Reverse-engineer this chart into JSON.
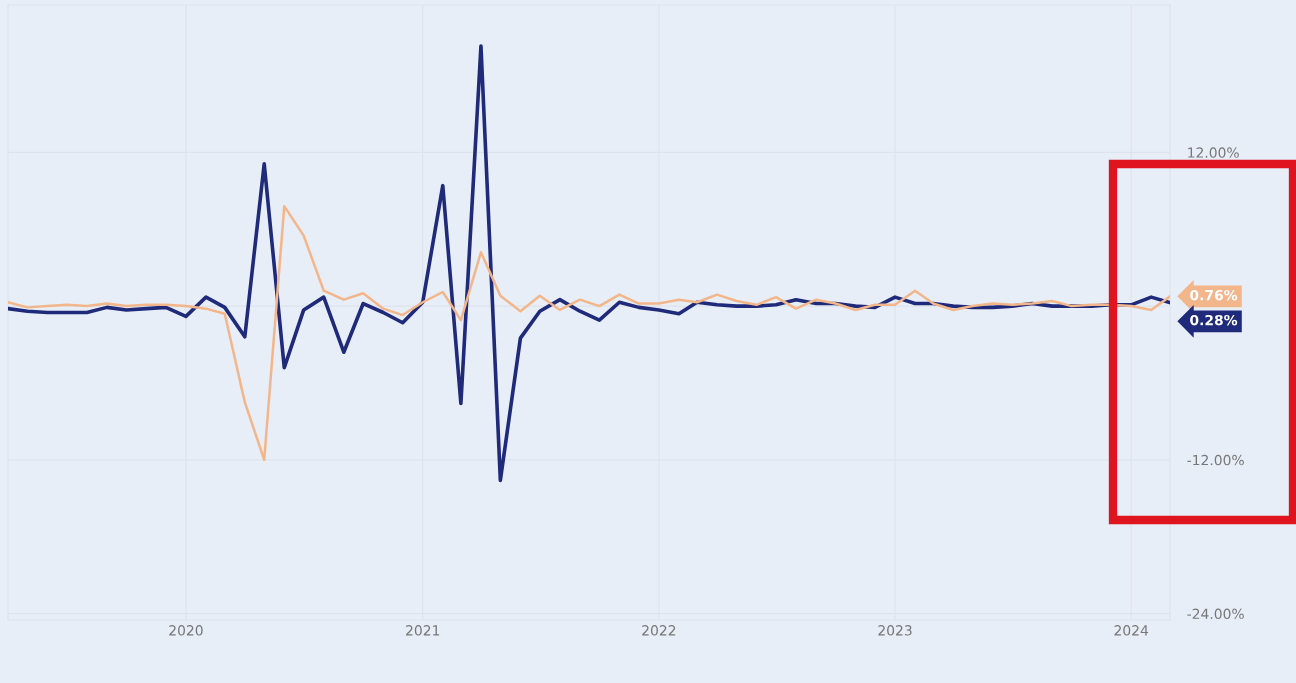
{
  "chart_data": {
    "type": "line",
    "x": [
      "2019-04",
      "2019-05",
      "2019-06",
      "2019-07",
      "2019-08",
      "2019-09",
      "2019-10",
      "2019-11",
      "2019-12",
      "2020-01",
      "2020-02",
      "2020-03",
      "2020-04",
      "2020-05",
      "2020-06",
      "2020-07",
      "2020-08",
      "2020-09",
      "2020-10",
      "2020-11",
      "2020-12",
      "2021-01",
      "2021-02",
      "2021-03",
      "2021-04",
      "2021-05",
      "2021-06",
      "2021-07",
      "2021-08",
      "2021-09",
      "2021-10",
      "2021-11",
      "2021-12",
      "2022-01",
      "2022-02",
      "2022-03",
      "2022-04",
      "2022-05",
      "2022-06",
      "2022-07",
      "2022-08",
      "2022-09",
      "2022-10",
      "2022-11",
      "2022-12",
      "2023-01",
      "2023-02",
      "2023-03",
      "2023-04",
      "2023-05",
      "2023-06",
      "2023-07",
      "2023-08",
      "2023-09",
      "2023-10",
      "2023-11",
      "2023-12",
      "2024-01",
      "2024-02",
      "2024-03"
    ],
    "series": [
      {
        "color": "#f2b68a",
        "values": [
          0.3,
          -0.1,
          0.0,
          0.1,
          0.0,
          0.2,
          0.0,
          0.1,
          0.1,
          0.0,
          -0.2,
          -0.6,
          -7.5,
          -12.0,
          7.8,
          5.5,
          1.2,
          0.5,
          1.0,
          -0.2,
          -0.7,
          0.3,
          1.1,
          -1.1,
          4.2,
          0.8,
          -0.4,
          0.8,
          -0.3,
          0.5,
          0.0,
          0.9,
          0.2,
          0.2,
          0.5,
          0.3,
          0.9,
          0.4,
          0.1,
          0.7,
          -0.2,
          0.5,
          0.2,
          -0.3,
          0.1,
          0.1,
          1.2,
          0.2,
          -0.3,
          0.0,
          0.2,
          0.1,
          0.2,
          0.4,
          0.0,
          0.1,
          0.1,
          0.0,
          -0.3,
          0.76
        ],
        "value_labels": [
          null,
          null,
          null,
          null,
          null,
          null,
          null,
          null,
          null,
          null,
          null,
          null,
          null,
          null,
          null,
          null,
          null,
          null,
          null,
          null,
          null,
          null,
          null,
          null,
          null,
          null,
          null,
          null,
          null,
          null,
          null,
          null,
          null,
          null,
          null,
          null,
          null,
          null,
          null,
          null,
          null,
          null,
          null,
          null,
          null,
          null,
          null,
          null,
          null,
          null,
          null,
          null,
          null,
          null,
          null,
          null,
          null,
          null,
          null,
          "0.76%"
        ]
      },
      {
        "color": "#1f2a7a",
        "values": [
          -0.2,
          -0.4,
          -0.5,
          -0.5,
          -0.5,
          -0.1,
          -0.3,
          -0.2,
          -0.1,
          -0.8,
          0.7,
          -0.1,
          -2.4,
          11.1,
          -4.8,
          -0.3,
          0.7,
          -3.6,
          0.2,
          -0.5,
          -1.3,
          0.3,
          9.4,
          -7.6,
          20.3,
          -13.6,
          -2.5,
          -0.4,
          0.5,
          -0.4,
          -1.1,
          0.3,
          -0.1,
          -0.3,
          -0.6,
          0.3,
          0.1,
          0.0,
          0.0,
          0.1,
          0.5,
          0.2,
          0.2,
          0.0,
          -0.1,
          0.7,
          0.2,
          0.2,
          0.0,
          -0.1,
          -0.1,
          0.0,
          0.2,
          0.0,
          0.0,
          0.0,
          0.1,
          0.1,
          0.7,
          0.28
        ],
        "value_labels": [
          null,
          null,
          null,
          null,
          null,
          null,
          null,
          null,
          null,
          null,
          null,
          null,
          null,
          null,
          null,
          null,
          null,
          null,
          null,
          null,
          null,
          null,
          null,
          null,
          null,
          null,
          null,
          null,
          null,
          null,
          null,
          null,
          null,
          null,
          null,
          null,
          null,
          null,
          null,
          null,
          null,
          null,
          null,
          null,
          null,
          null,
          null,
          null,
          null,
          null,
          null,
          null,
          null,
          null,
          null,
          null,
          null,
          null,
          null,
          "0.28%"
        ]
      }
    ],
    "xlim": [
      "2019-04",
      "2024-03"
    ],
    "xticks": [
      {
        "value": "2020-01",
        "label": "2020"
      },
      {
        "value": "2021-01",
        "label": "2021"
      },
      {
        "value": "2022-01",
        "label": "2022"
      },
      {
        "value": "2023-01",
        "label": "2023"
      },
      {
        "value": "2024-01",
        "label": "2024"
      }
    ],
    "ylim": [
      -24.5,
      23.5
    ],
    "yticks": [
      {
        "value": -24,
        "label": "-24.00%"
      },
      {
        "value": -12,
        "label": "-12.00%"
      },
      {
        "value": 0,
        "label": null
      },
      {
        "value": 12,
        "label": "12.00%"
      }
    ],
    "grid": true,
    "legend": false,
    "marker": "none",
    "line_style": "solid"
  }
}
